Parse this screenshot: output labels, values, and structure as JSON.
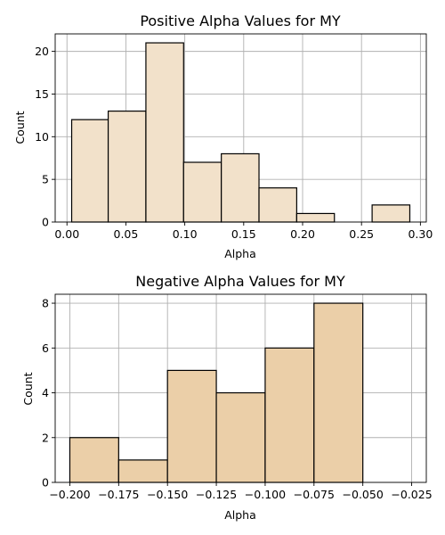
{
  "chart_data": [
    {
      "type": "bar",
      "title": "Positive Alpha Values for MY",
      "xlabel": "Alpha",
      "ylabel": "Count",
      "bins": [
        {
          "start": 0.004,
          "end": 0.035,
          "count": 12
        },
        {
          "start": 0.035,
          "end": 0.067,
          "count": 13
        },
        {
          "start": 0.067,
          "end": 0.099,
          "count": 21
        },
        {
          "start": 0.099,
          "end": 0.131,
          "count": 7
        },
        {
          "start": 0.131,
          "end": 0.163,
          "count": 8
        },
        {
          "start": 0.163,
          "end": 0.195,
          "count": 4
        },
        {
          "start": 0.195,
          "end": 0.227,
          "count": 1
        },
        {
          "start": 0.227,
          "end": 0.259,
          "count": 0
        },
        {
          "start": 0.259,
          "end": 0.291,
          "count": 2
        }
      ],
      "xlim": [
        -0.01,
        0.305
      ],
      "ylim": [
        0,
        22.05
      ],
      "xticks": [
        0.0,
        0.05,
        0.1,
        0.15,
        0.2,
        0.25,
        0.3
      ],
      "xtick_labels": [
        "0.00",
        "0.05",
        "0.10",
        "0.15",
        "0.20",
        "0.25",
        "0.30"
      ],
      "yticks": [
        0,
        5,
        10,
        15,
        20
      ],
      "ytick_labels": [
        "0",
        "5",
        "10",
        "15",
        "20"
      ],
      "grid": true,
      "bar_color": "#f2e1ca"
    },
    {
      "type": "bar",
      "title": "Negative Alpha Values for MY",
      "xlabel": "Alpha",
      "ylabel": "Count",
      "bins": [
        {
          "start": -0.2,
          "end": -0.175,
          "count": 2
        },
        {
          "start": -0.175,
          "end": -0.15,
          "count": 1
        },
        {
          "start": -0.15,
          "end": -0.125,
          "count": 5
        },
        {
          "start": -0.125,
          "end": -0.1,
          "count": 4
        },
        {
          "start": -0.1,
          "end": -0.075,
          "count": 6
        },
        {
          "start": -0.075,
          "end": -0.05,
          "count": 8
        }
      ],
      "xlim": [
        -0.2075,
        -0.0175
      ],
      "ylim": [
        0,
        8.4
      ],
      "xticks": [
        -0.2,
        -0.175,
        -0.15,
        -0.125,
        -0.1,
        -0.075,
        -0.05,
        -0.025
      ],
      "xtick_labels": [
        "−0.200",
        "−0.175",
        "−0.150",
        "−0.125",
        "−0.100",
        "−0.075",
        "−0.050",
        "−0.025"
      ],
      "yticks": [
        0,
        2,
        4,
        6,
        8
      ],
      "ytick_labels": [
        "0",
        "2",
        "4",
        "6",
        "8"
      ],
      "grid": true,
      "bar_color": "#ebcfa8"
    }
  ]
}
